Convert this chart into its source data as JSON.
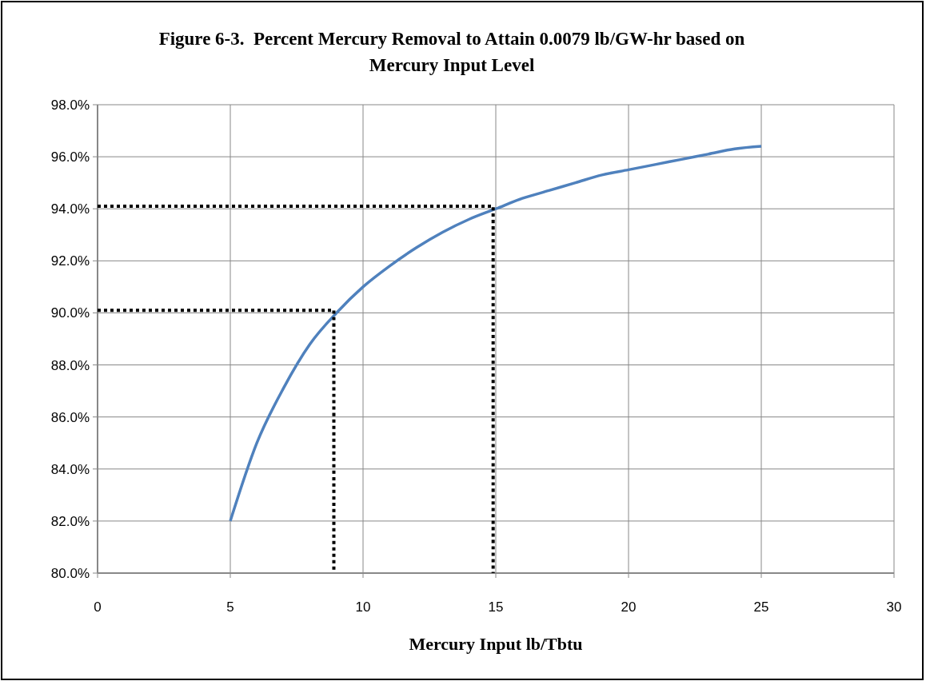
{
  "chart_data": {
    "type": "line",
    "title": "Figure 6-3.  Percent Mercury Removal to Attain 0.0079 lb/GW-hr based on Mercury Input Level",
    "xlabel": "Mercury Input lb/Tbtu",
    "xlim": [
      0,
      30
    ],
    "xticks": [
      0,
      5,
      10,
      15,
      20,
      25,
      30
    ],
    "ylim": [
      80,
      98
    ],
    "yticks": [
      {
        "value": 80,
        "label": "80.0%"
      },
      {
        "value": 82,
        "label": "82.0%"
      },
      {
        "value": 84,
        "label": "84.0%"
      },
      {
        "value": 86,
        "label": "86.0%"
      },
      {
        "value": 88,
        "label": "88.0%"
      },
      {
        "value": 90,
        "label": "90.0%"
      },
      {
        "value": 92,
        "label": "92.0%"
      },
      {
        "value": 94,
        "label": "94.0%"
      },
      {
        "value": 96,
        "label": "96.0%"
      },
      {
        "value": 98,
        "label": "98.0%"
      }
    ],
    "grid": true,
    "marker": "none",
    "line_style": "solid",
    "series": [
      {
        "color": "#4f81bd",
        "x": [
          5,
          6,
          7,
          8,
          9,
          10,
          11,
          12,
          13,
          14,
          15,
          16,
          17,
          18,
          19,
          20,
          21,
          22,
          23,
          24,
          25
        ],
        "values": [
          82.0,
          85.0,
          87.1,
          88.8,
          90.0,
          91.0,
          91.8,
          92.5,
          93.1,
          93.6,
          94.0,
          94.4,
          94.7,
          95.0,
          95.3,
          95.5,
          95.7,
          95.9,
          96.1,
          96.3,
          96.4
        ]
      },
      {
        "color": "#000000",
        "line_style": "dotted",
        "x": [
          0,
          8.9,
          8.9
        ],
        "values": [
          90.1,
          90.1,
          80
        ]
      },
      {
        "color": "#000000",
        "line_style": "dotted",
        "x": [
          0,
          14.9,
          14.9
        ],
        "values": [
          94.1,
          94.1,
          80
        ]
      }
    ]
  }
}
